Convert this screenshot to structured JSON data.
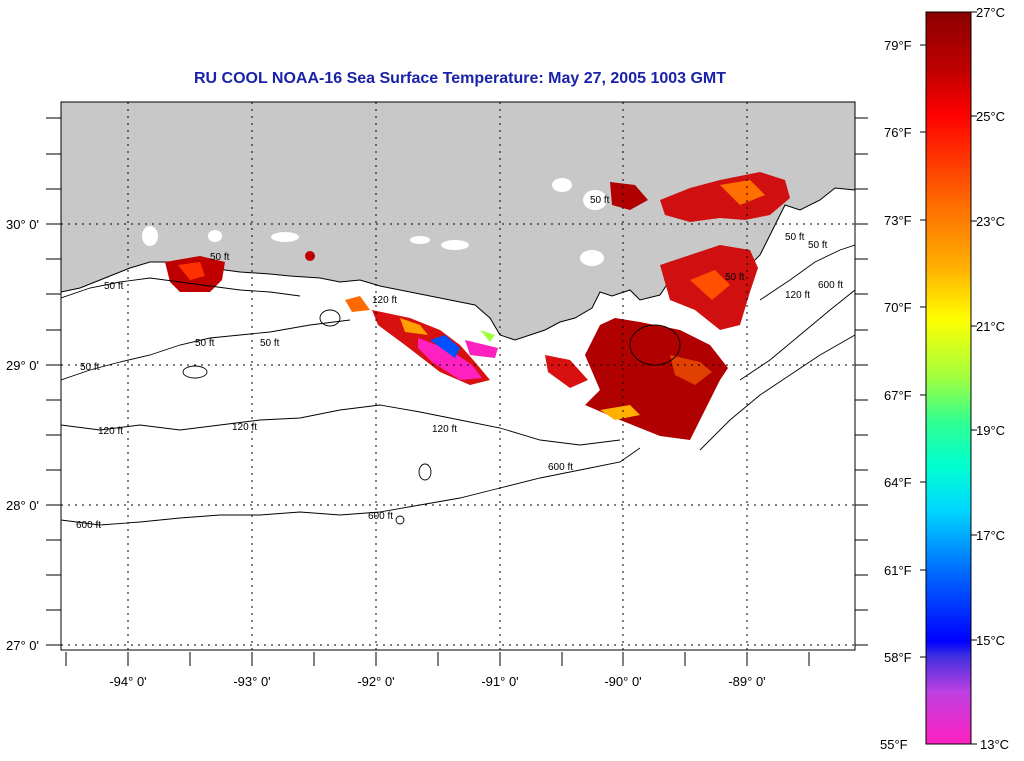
{
  "title": "RU COOL  NOAA-16  Sea Surface Temperature:  May 27, 2005 1003 GMT",
  "map": {
    "lon_labels": [
      "-94° 0'",
      "-93° 0'",
      "-92° 0'",
      "-91° 0'",
      "-90° 0'",
      "-89° 0'"
    ],
    "lat_labels": [
      "30° 0'",
      "29° 0'",
      "28° 0'",
      "27° 0'"
    ],
    "contour_labels": [
      "50 ft",
      "50 ft",
      "50 ft",
      "50 ft",
      "50 ft",
      "50 ft",
      "50 ft",
      "50 ft",
      "50 ft",
      "120 ft",
      "120 ft",
      "120 ft",
      "120 ft",
      "120 ft",
      "600 ft",
      "600 ft",
      "600 ft"
    ],
    "colors": {
      "land": "#c8c8c8",
      "title": "#1a22a8",
      "frame": "#000000"
    }
  },
  "colorbar": {
    "fahrenheit_labels": [
      "79°F",
      "76°F",
      "73°F",
      "70°F",
      "67°F",
      "64°F",
      "61°F",
      "58°F",
      "55°F"
    ],
    "celsius_labels": [
      "27°C",
      "25°C",
      "23°C",
      "21°C",
      "19°C",
      "17°C",
      "15°C",
      "13°C"
    ]
  }
}
